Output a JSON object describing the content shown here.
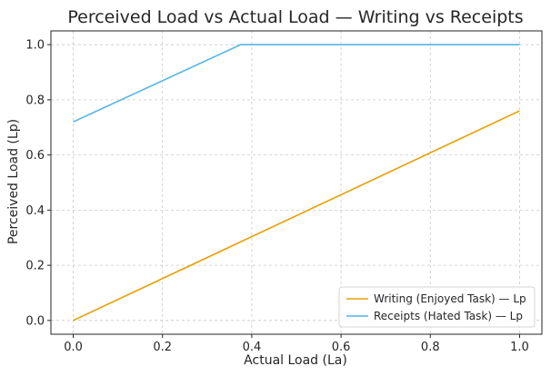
{
  "chart_data": {
    "type": "line",
    "title": "Perceived Load vs Actual Load — Writing vs Receipts",
    "xlabel": "Actual Load (La)",
    "ylabel": "Perceived Load (Lp)",
    "xlim": [
      -0.05,
      1.05
    ],
    "ylim": [
      -0.05,
      1.05
    ],
    "x_ticks": [
      {
        "value": 0.0,
        "label": "0.0"
      },
      {
        "value": 0.2,
        "label": "0.2"
      },
      {
        "value": 0.4,
        "label": "0.4"
      },
      {
        "value": 0.6,
        "label": "0.6"
      },
      {
        "value": 0.8,
        "label": "0.8"
      },
      {
        "value": 1.0,
        "label": "1.0"
      }
    ],
    "y_ticks": [
      {
        "value": 0.0,
        "label": "0.0"
      },
      {
        "value": 0.2,
        "label": "0.2"
      },
      {
        "value": 0.4,
        "label": "0.4"
      },
      {
        "value": 0.6,
        "label": "0.6"
      },
      {
        "value": 0.8,
        "label": "0.8"
      },
      {
        "value": 1.0,
        "label": "1.0"
      }
    ],
    "grid": true,
    "legend_position": "bottom-right",
    "series": [
      {
        "name": "Writing (Enjoyed Task) — Lp",
        "color": "#E69F00",
        "x": [
          0.0,
          1.0
        ],
        "y": [
          0.0,
          0.76
        ]
      },
      {
        "name": "Receipts (Hated Task) — Lp",
        "color": "#56B4E9",
        "x": [
          0.0,
          0.375,
          1.0
        ],
        "y": [
          0.72,
          1.0,
          1.0
        ]
      }
    ]
  }
}
